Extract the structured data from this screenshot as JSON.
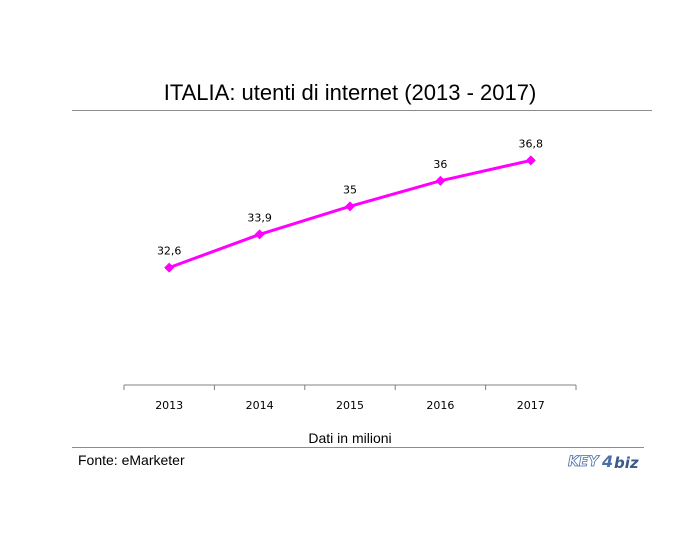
{
  "chart_data": {
    "type": "line",
    "title": "ITALIA: utenti di internet (2013 - 2017)",
    "xlabel": "Dati in milioni",
    "ylabel": "",
    "categories": [
      "2013",
      "2014",
      "2015",
      "2016",
      "2017"
    ],
    "series": [
      {
        "values": [
          32.6,
          33.9,
          35,
          36,
          36.8
        ],
        "labels": [
          "32,6",
          "33,9",
          "35",
          "36",
          "36,8"
        ],
        "color": "#ff00ff"
      }
    ],
    "ylim": [
      28,
      37.6
    ],
    "grid": false,
    "legend": "none"
  },
  "source": "Fonte: eMarketer",
  "logo": {
    "text_left": "KEY",
    "text_right": "biz",
    "color_left": "#4a6fa5",
    "color_right": "#3a5a8a"
  }
}
